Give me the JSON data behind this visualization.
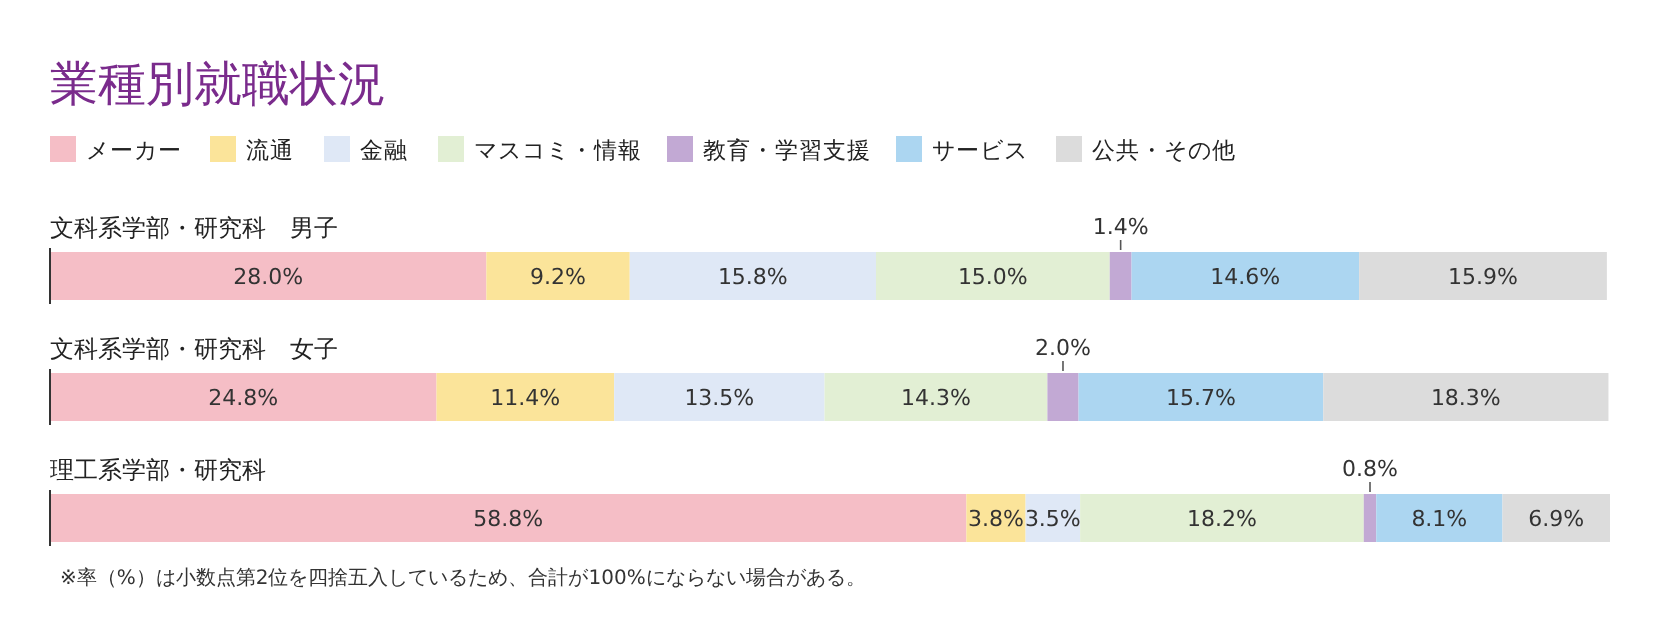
{
  "chart_data": {
    "type": "bar",
    "orientation": "horizontal",
    "stacked": true,
    "title": "業種別就職状況",
    "categories": [
      "文科系学部・研究科　男子",
      "文科系学部・研究科　女子",
      "理工系学部・研究科"
    ],
    "series": [
      {
        "name": "メーカー",
        "color": "#f5bec6",
        "values": [
          28.0,
          24.8,
          58.8
        ],
        "value_labels": [
          "28.0%",
          "24.8%",
          "58.8%"
        ]
      },
      {
        "name": "流通",
        "color": "#fbe49a",
        "values": [
          9.2,
          11.4,
          3.8
        ],
        "value_labels": [
          "9.2%",
          "11.4%",
          "3.8%"
        ]
      },
      {
        "name": "金融",
        "color": "#dfe8f6",
        "values": [
          15.8,
          13.5,
          3.5
        ],
        "value_labels": [
          "15.8%",
          "13.5%",
          "3.5%"
        ]
      },
      {
        "name": "マスコミ・情報",
        "color": "#e2efd4",
        "values": [
          15.0,
          14.3,
          18.2
        ],
        "value_labels": [
          "15.0%",
          "14.3%",
          "18.2%"
        ]
      },
      {
        "name": "教育・学習支援",
        "color": "#c2a9d4",
        "values": [
          1.4,
          2.0,
          0.8
        ],
        "value_labels": [
          "1.4%",
          "2.0%",
          "0.8%"
        ]
      },
      {
        "name": "サービス",
        "color": "#acd6f1",
        "values": [
          14.6,
          15.7,
          8.1
        ],
        "value_labels": [
          "14.6%",
          "15.7%",
          "8.1%"
        ]
      },
      {
        "name": "公共・その他",
        "color": "#dcdcdc",
        "values": [
          15.9,
          18.3,
          6.9
        ],
        "value_labels": [
          "15.9%",
          "18.3%",
          "6.9%"
        ]
      }
    ],
    "legend": "top left",
    "tick_labels": "y",
    "annotations": [
      "※率（%）は小数点第2位を四捨五入しているため、合計が100%にならない場合がある。"
    ]
  }
}
